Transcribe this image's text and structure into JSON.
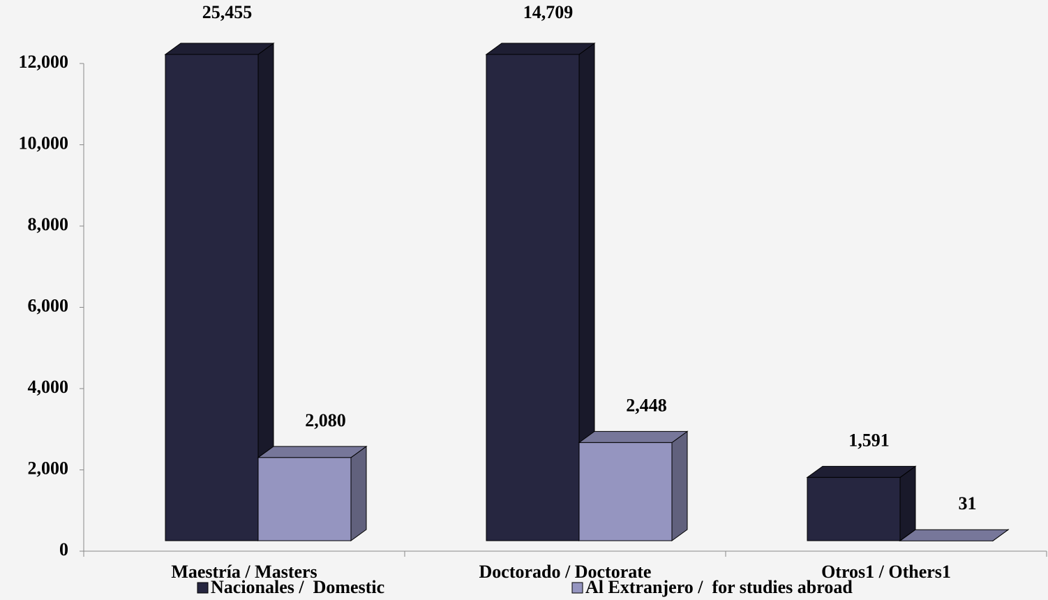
{
  "chart_data": {
    "type": "bar3d",
    "categories": [
      "Maestría / Masters",
      "Doctorado / Doctorate",
      "Otros1 / Others1"
    ],
    "series": [
      {
        "name": "Nacionales /  Domestic",
        "color": "#262640",
        "values": [
          25455,
          14709,
          1591
        ],
        "value_labels": [
          "25,455",
          "14,709",
          "1,591"
        ]
      },
      {
        "name": "Al Extranjero /  for studies abroad",
        "color": "#9595c0",
        "values": [
          2080,
          2448,
          31
        ],
        "value_labels": [
          "2,080",
          "2,448",
          "31"
        ]
      }
    ],
    "ylim": [
      0,
      12000
    ],
    "yticks": [
      0,
      {
        "value": 2000,
        "label": "2,000"
      },
      {
        "value": 4000,
        "label": "4,000"
      },
      {
        "value": 6000,
        "label": "6,000"
      },
      {
        "value": 8000,
        "label": "8,000"
      },
      {
        "value": 10000,
        "label": "10,000"
      },
      {
        "value": 12000,
        "label": "12,000"
      }
    ],
    "legend": "bottom"
  }
}
